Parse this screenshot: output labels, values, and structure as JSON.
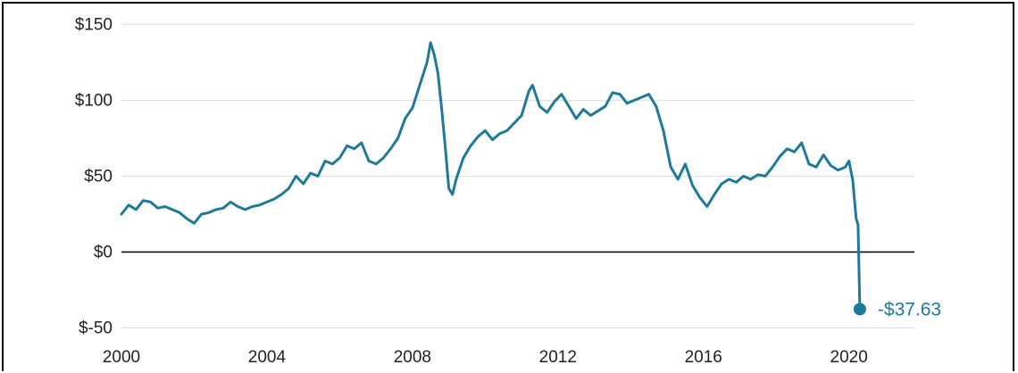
{
  "chart_data": {
    "type": "line",
    "title": "",
    "xlabel": "",
    "ylabel": "",
    "xlim": [
      2000,
      2021.8
    ],
    "ylim": [
      -55,
      152
    ],
    "grid": true,
    "x_ticks": [
      2000,
      2004,
      2008,
      2012,
      2016,
      2020
    ],
    "x_tick_labels": [
      "2000",
      "2004",
      "2008",
      "2012",
      "2016",
      "2020"
    ],
    "y_ticks": [
      150,
      100,
      50,
      0,
      -50
    ],
    "y_tick_labels": [
      "$150",
      "$100",
      "$50",
      "$0",
      "$-50"
    ],
    "line_color": "#1f7a9a",
    "zero_line_color": "#111111",
    "grid_color": "#dcdcdc",
    "series": [
      {
        "x": [
          2000.0,
          2000.2,
          2000.4,
          2000.6,
          2000.8,
          2001.0,
          2001.2,
          2001.4,
          2001.6,
          2001.8,
          2002.0,
          2002.2,
          2002.4,
          2002.6,
          2002.8,
          2003.0,
          2003.2,
          2003.4,
          2003.6,
          2003.8,
          2004.0,
          2004.2,
          2004.4,
          2004.6,
          2004.8,
          2005.0,
          2005.2,
          2005.4,
          2005.6,
          2005.8,
          2006.0,
          2006.2,
          2006.4,
          2006.6,
          2006.8,
          2007.0,
          2007.2,
          2007.4,
          2007.6,
          2007.8,
          2008.0,
          2008.2,
          2008.4,
          2008.5,
          2008.6,
          2008.7,
          2008.8,
          2008.9,
          2009.0,
          2009.1,
          2009.2,
          2009.4,
          2009.6,
          2009.8,
          2010.0,
          2010.2,
          2010.4,
          2010.6,
          2010.8,
          2011.0,
          2011.2,
          2011.3,
          2011.5,
          2011.7,
          2011.9,
          2012.1,
          2012.3,
          2012.5,
          2012.7,
          2012.9,
          2013.1,
          2013.3,
          2013.5,
          2013.7,
          2013.9,
          2014.1,
          2014.3,
          2014.5,
          2014.7,
          2014.9,
          2015.1,
          2015.3,
          2015.5,
          2015.7,
          2015.9,
          2016.1,
          2016.3,
          2016.5,
          2016.7,
          2016.9,
          2017.1,
          2017.3,
          2017.5,
          2017.7,
          2017.9,
          2018.1,
          2018.3,
          2018.5,
          2018.7,
          2018.9,
          2019.1,
          2019.3,
          2019.5,
          2019.7,
          2019.9,
          2020.0,
          2020.1,
          2020.2,
          2020.25,
          2020.3
        ],
        "y": [
          25,
          31,
          28,
          34,
          33,
          29,
          30,
          28,
          26,
          22,
          19,
          25,
          26,
          28,
          29,
          33,
          30,
          28,
          30,
          31,
          33,
          35,
          38,
          42,
          50,
          45,
          52,
          50,
          60,
          58,
          62,
          70,
          68,
          72,
          60,
          58,
          62,
          68,
          75,
          88,
          95,
          110,
          125,
          138,
          130,
          118,
          95,
          70,
          42,
          38,
          48,
          62,
          70,
          76,
          80,
          74,
          78,
          80,
          85,
          90,
          106,
          110,
          96,
          92,
          99,
          104,
          96,
          88,
          94,
          90,
          93,
          96,
          105,
          104,
          98,
          100,
          102,
          104,
          96,
          80,
          56,
          48,
          58,
          44,
          36,
          30,
          38,
          45,
          48,
          46,
          50,
          48,
          51,
          50,
          56,
          63,
          68,
          66,
          72,
          58,
          56,
          64,
          57,
          54,
          56,
          60,
          48,
          22,
          18,
          -37.63
        ]
      }
    ],
    "end_label": "-$37.63",
    "end_value": -37.63,
    "end_x": 2020.3
  }
}
